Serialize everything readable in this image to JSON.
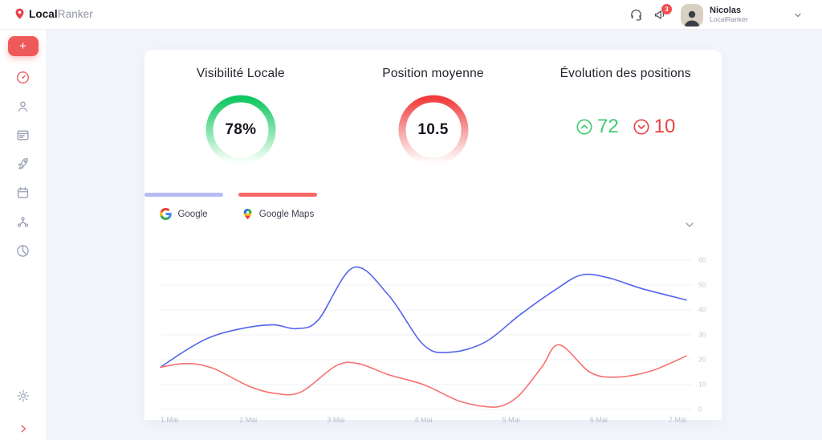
{
  "topbar": {
    "logo_bold": "Local",
    "logo_light": "Ranker",
    "logo_icon": "map-pin-icon",
    "support_icon": "headset-icon",
    "announcements_icon": "megaphone-icon",
    "notification_count": "3",
    "user_name": "Nicolas",
    "user_org": "LocalRanker"
  },
  "sidebar": {
    "add_label": "+",
    "items": [
      {
        "icon": "dashboard-icon",
        "active": true
      },
      {
        "icon": "users-icon",
        "active": false
      },
      {
        "icon": "listings-icon",
        "active": false
      },
      {
        "icon": "rocket-icon",
        "active": false
      },
      {
        "icon": "calendar-icon",
        "active": false
      },
      {
        "icon": "sitemap-icon",
        "active": false
      },
      {
        "icon": "pie-chart-icon",
        "active": false
      }
    ],
    "settings_icon": "gear-icon",
    "expand_icon": "chevron-right-icon"
  },
  "stats": {
    "visibility": {
      "title": "Visibilité Locale",
      "value": "78%",
      "ring_color": "#14c765"
    },
    "avg_position": {
      "title": "Position moyenne",
      "value": "10.5",
      "ring_color": "#f13d3d"
    },
    "evolution": {
      "title": "Évolution des positions",
      "up_value": "72",
      "up_color": "#3ecb72",
      "up_icon": "circle-chevron-up-icon",
      "down_value": "10",
      "down_color": "#ea4343",
      "down_icon": "circle-chevron-down-icon"
    }
  },
  "legend_tabs": [
    {
      "label": "Google",
      "icon": "google-icon",
      "bar_color": "#b6bcf3"
    },
    {
      "label": "Google Maps",
      "icon": "google-maps-icon",
      "bar_color": "#f76868"
    }
  ],
  "chart_data": {
    "type": "line",
    "title": "",
    "xlabel": "",
    "ylabel": "",
    "x_tick_labels": [
      "1 Mai",
      "2 Mai",
      "3 Mai",
      "4 Mai",
      "5 Mai",
      "6 Mai",
      "7 Mai"
    ],
    "y_ticks": [
      0,
      10,
      20,
      30,
      40,
      50,
      60
    ],
    "ylim": [
      0,
      60
    ],
    "grid": "horizontal",
    "y_axis_side": "right",
    "series": [
      {
        "name": "Google",
        "color": "#5565ee",
        "points": [
          [
            1,
            17
          ],
          [
            1.3,
            24
          ],
          [
            1.6,
            29.5
          ],
          [
            2,
            33
          ],
          [
            2.3,
            34
          ],
          [
            2.55,
            32.5
          ],
          [
            2.8,
            36
          ],
          [
            3.2,
            57
          ],
          [
            3.6,
            46
          ],
          [
            4,
            26
          ],
          [
            4.3,
            23
          ],
          [
            4.7,
            27
          ],
          [
            5.1,
            38
          ],
          [
            5.5,
            48
          ],
          [
            5.8,
            54
          ],
          [
            6.1,
            53
          ],
          [
            6.5,
            48.5
          ],
          [
            7,
            44
          ]
        ]
      },
      {
        "name": "Google Maps",
        "color": "#f87070",
        "points": [
          [
            1,
            17
          ],
          [
            1.3,
            18.5
          ],
          [
            1.6,
            16.5
          ],
          [
            2,
            9.5
          ],
          [
            2.3,
            6.5
          ],
          [
            2.6,
            7
          ],
          [
            3,
            17.5
          ],
          [
            3.25,
            18.5
          ],
          [
            3.6,
            14
          ],
          [
            4,
            10
          ],
          [
            4.4,
            3.5
          ],
          [
            4.7,
            1.2
          ],
          [
            4.9,
            1.5
          ],
          [
            5.1,
            6
          ],
          [
            5.35,
            17
          ],
          [
            5.55,
            26
          ],
          [
            5.9,
            15
          ],
          [
            6.2,
            13
          ],
          [
            6.6,
            15.5
          ],
          [
            7,
            21.5
          ]
        ]
      }
    ]
  }
}
